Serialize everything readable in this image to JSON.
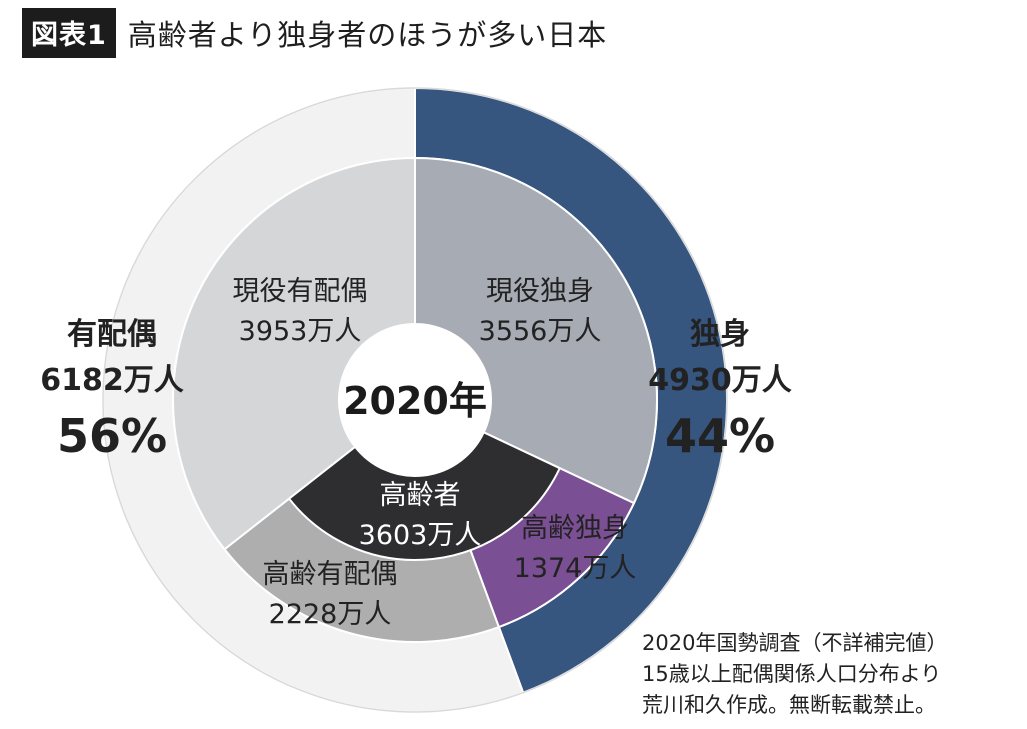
{
  "header": {
    "badge": "図表1",
    "title": "高齢者より独身者のほうが多い日本"
  },
  "chart_data": {
    "type": "donut",
    "center_label": "2020年",
    "unit": "万人",
    "outer": [
      {
        "name": "独身",
        "value": 4930,
        "value_label": "4930万人",
        "percent_label": "44%",
        "color": "#36557f"
      },
      {
        "name": "有配偶",
        "value": 6182,
        "value_label": "6182万人",
        "percent_label": "56%",
        "color": "#f2f2f3"
      }
    ],
    "inner": [
      {
        "name": "現役独身",
        "value": 3556,
        "value_label": "3556万人",
        "color": "#a7abb3"
      },
      {
        "name": "高齢独身",
        "value": 1374,
        "value_label": "1374万人",
        "color": "#7a4f93"
      },
      {
        "name": "高齢有配偶",
        "value": 2228,
        "value_label": "2228万人",
        "color": "#aeaeae"
      },
      {
        "name": "現役有配偶",
        "value": 3953,
        "value_label": "3953万人",
        "color": "#d5d6d8"
      }
    ],
    "group": {
      "name": "高齢者",
      "value": 3603,
      "value_label": "3603万人",
      "color": "#2e2d30"
    }
  },
  "notes": [
    "2020年国勢調査（不詳補完値）",
    "15歳以上配偶関係人口分布より",
    "荒川和久作成。無断転載禁止。"
  ]
}
